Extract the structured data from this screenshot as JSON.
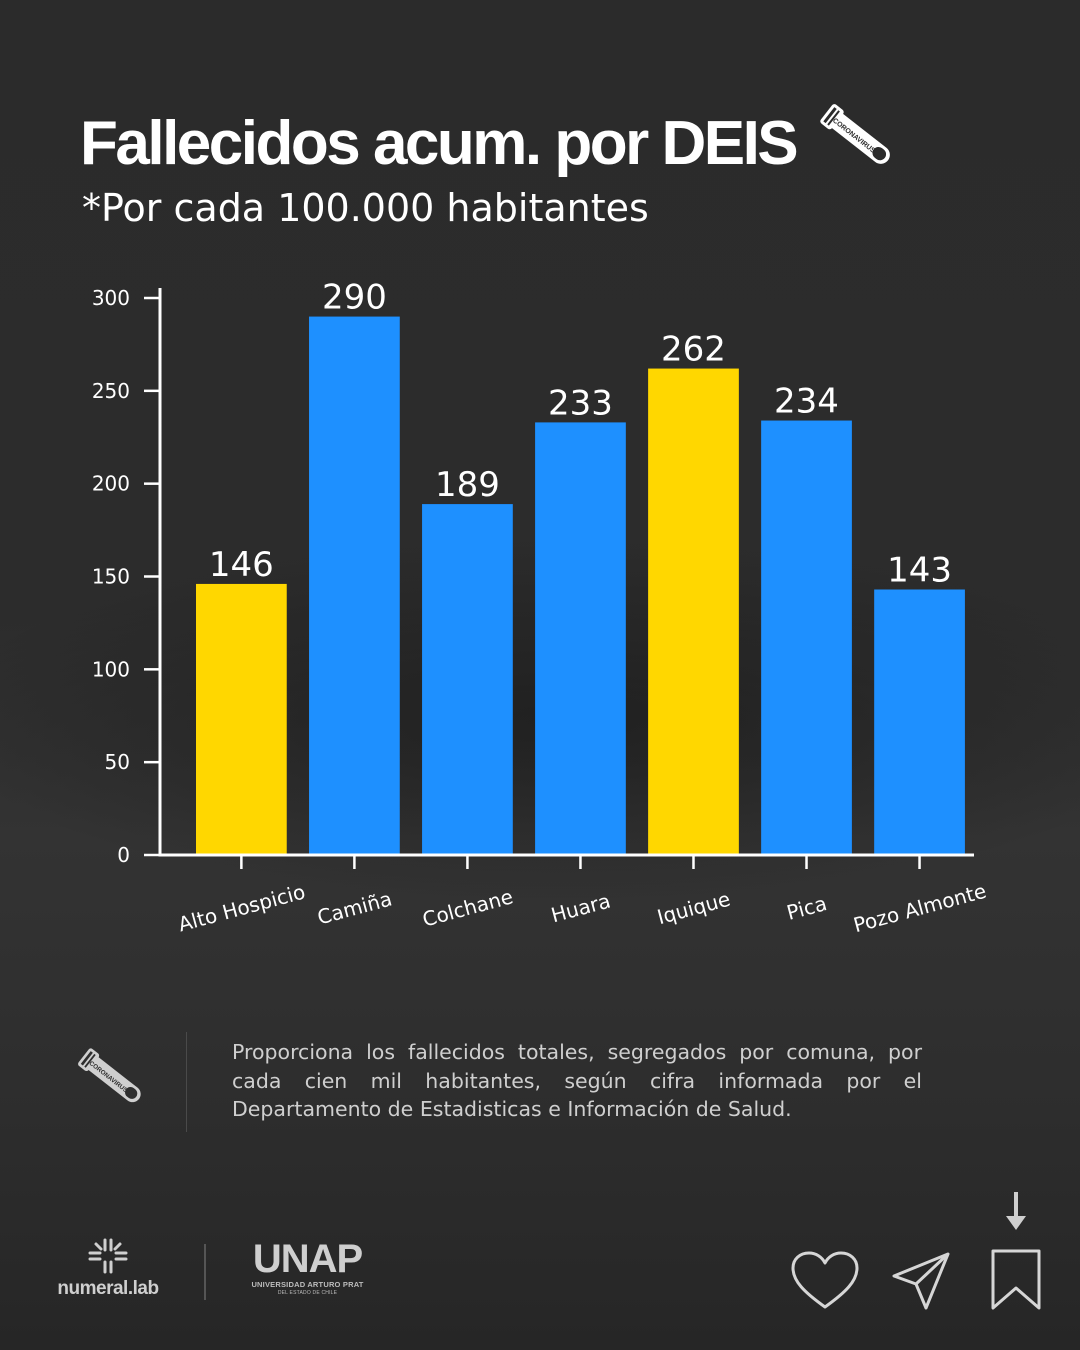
{
  "title": "Fallecidos acum. por DEIS",
  "subtitle": {
    "prefix": "*Por cada ",
    "number": "100.000",
    "suffix": " habitantes"
  },
  "icons": {
    "title_icon": "test-tube-icon",
    "desc_icon": "test-tube-icon",
    "tube_label": "CORONAVIRUS"
  },
  "chart_data": {
    "type": "bar",
    "categories": [
      "Alto Hospicio",
      "Camiña",
      "Colchane",
      "Huara",
      "Iquique",
      "Pica",
      "Pozo Almonte"
    ],
    "values": [
      146,
      290,
      189,
      233,
      262,
      234,
      143
    ],
    "value_labels": [
      "146",
      "290",
      "189",
      "233",
      "262",
      "234",
      "143"
    ],
    "bar_colors": [
      "#FFD700",
      "#1E90FF",
      "#1E90FF",
      "#1E90FF",
      "#FFD700",
      "#1E90FF",
      "#1E90FF"
    ],
    "yticks": [
      0,
      50,
      100,
      150,
      200,
      250,
      300
    ],
    "ytick_labels": [
      "0",
      "50",
      "100",
      "150",
      "200",
      "250",
      "300"
    ],
    "ylim": [
      0,
      300
    ],
    "grid": false,
    "legend": "none",
    "xlabel": "",
    "ylabel": ""
  },
  "description": "Proporciona los fallecidos totales, segregados por comuna, por cada cien mil habitantes, según cifra informada por el Departamento de Estadisticas e Información de Salud.",
  "branding": {
    "numeral": "numeral.lab",
    "unap": "UNAP",
    "unap_sub": "UNIVERSIDAD ARTURO PRAT",
    "unap_sub2": "DEL ESTADO DE CHILE"
  },
  "actions": {
    "like_icon": "heart-icon",
    "share_icon": "paper-plane-icon",
    "save_icon": "bookmark-icon",
    "save_hint_icon": "arrow-down-icon"
  }
}
